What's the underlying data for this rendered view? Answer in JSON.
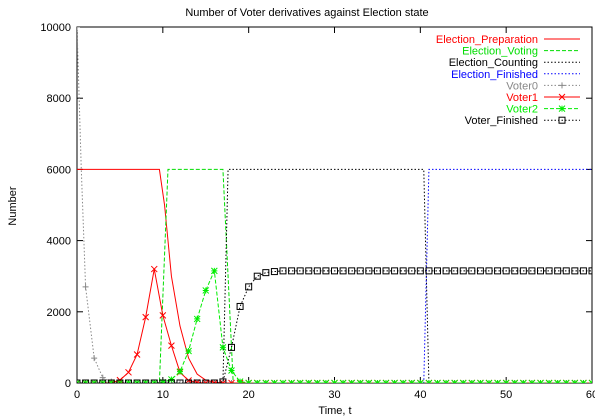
{
  "chart_data": {
    "type": "line",
    "title": "Number of Voter derivatives against Election state",
    "xlabel": "Time, t",
    "ylabel": "Number",
    "xlim": [
      0,
      60
    ],
    "ylim": [
      0,
      10000
    ],
    "x_ticks": [
      "0",
      "10",
      "20",
      "30",
      "40",
      "50",
      "60"
    ],
    "y_ticks": [
      "0",
      "2000",
      "4000",
      "6000",
      "8000",
      "10000"
    ],
    "grid": false,
    "legend_position": "top-right",
    "series": [
      {
        "name": "Election_Preparation",
        "color": "#ff0000",
        "dash": "solid",
        "marker": "none",
        "x": [
          0,
          9.6,
          10.2,
          11,
          12,
          13,
          14,
          15,
          16,
          17,
          18,
          60
        ],
        "y": [
          6000,
          6000,
          5000,
          3000,
          1600,
          700,
          250,
          80,
          20,
          0,
          0,
          0
        ]
      },
      {
        "name": "Election_Voting",
        "color": "#00dd00",
        "dash": "dashed",
        "marker": "none",
        "x": [
          0,
          9.6,
          10.6,
          17.0,
          17.6,
          18.2,
          60
        ],
        "y": [
          0,
          0,
          6000,
          6000,
          3000,
          0,
          0
        ]
      },
      {
        "name": "Election_Counting",
        "color": "#000000",
        "dash": "dotted",
        "marker": "none",
        "x": [
          0,
          17.0,
          17.6,
          40.4,
          41.0,
          60
        ],
        "y": [
          0,
          0,
          6000,
          6000,
          0,
          0
        ]
      },
      {
        "name": "Election_Finished",
        "color": "#0000ff",
        "dash": "dotted",
        "marker": "none",
        "x": [
          0,
          40.4,
          41.0,
          60
        ],
        "y": [
          0,
          0,
          6000,
          6000
        ]
      },
      {
        "name": "Voter0",
        "color": "#888888",
        "dash": "dotted",
        "marker": "plus",
        "x": [
          0,
          0.5,
          1,
          2,
          3,
          4,
          5,
          6,
          7,
          8,
          9,
          10,
          11,
          12,
          13,
          14,
          15,
          16,
          17,
          18,
          19,
          20,
          21,
          22,
          23,
          24,
          25,
          26,
          27,
          28,
          29,
          30,
          31,
          32,
          33,
          34,
          35,
          36,
          37,
          38,
          39,
          40,
          41,
          42,
          43,
          44,
          45,
          46,
          47,
          48,
          49,
          50,
          51,
          52,
          53,
          54,
          55,
          56,
          57,
          58,
          59,
          60
        ],
        "y": [
          10000,
          6000,
          2700,
          700,
          150,
          40,
          10,
          0,
          0,
          0,
          0,
          0,
          0,
          0,
          0,
          0,
          0,
          0,
          0,
          0,
          0,
          0,
          0,
          0,
          0,
          0,
          0,
          0,
          0,
          0,
          0,
          0,
          0,
          0,
          0,
          0,
          0,
          0,
          0,
          0,
          0,
          0,
          0,
          0,
          0,
          0,
          0,
          0,
          0,
          0,
          0,
          0,
          0,
          0,
          0,
          0,
          0,
          0,
          0,
          0,
          0,
          0
        ]
      },
      {
        "name": "Voter1",
        "color": "#ff0000",
        "dash": "solid",
        "marker": "x",
        "x": [
          0,
          1,
          2,
          3,
          4,
          5,
          6,
          7,
          8,
          9,
          10,
          11,
          12,
          13,
          14,
          15,
          16,
          17,
          18,
          19,
          20,
          21,
          22,
          23,
          24,
          25,
          26,
          27,
          28,
          29,
          30,
          31,
          32,
          33,
          34,
          35,
          36,
          37,
          38,
          39,
          40,
          41,
          42,
          43,
          44,
          45,
          46,
          47,
          48,
          49,
          50,
          51,
          52,
          53,
          54,
          55,
          56,
          57,
          58,
          59,
          60
        ],
        "y": [
          0,
          0,
          0,
          0,
          10,
          80,
          300,
          800,
          1850,
          3200,
          1900,
          1050,
          300,
          70,
          15,
          0,
          0,
          0,
          0,
          0,
          0,
          0,
          0,
          0,
          0,
          0,
          0,
          0,
          0,
          0,
          0,
          0,
          0,
          0,
          0,
          0,
          0,
          0,
          0,
          0,
          0,
          0,
          0,
          0,
          0,
          0,
          0,
          0,
          0,
          0,
          0,
          0,
          0,
          0,
          0,
          0,
          0,
          0,
          0,
          0,
          0
        ]
      },
      {
        "name": "Voter2",
        "color": "#00ee00",
        "dash": "dashed",
        "marker": "star",
        "x": [
          0,
          1,
          2,
          3,
          4,
          5,
          6,
          7,
          8,
          9,
          10,
          11,
          12,
          13,
          14,
          15,
          16,
          17,
          18,
          19,
          20,
          21,
          22,
          23,
          24,
          25,
          26,
          27,
          28,
          29,
          30,
          31,
          32,
          33,
          34,
          35,
          36,
          37,
          38,
          39,
          40,
          41,
          42,
          43,
          44,
          45,
          46,
          47,
          48,
          49,
          50,
          51,
          52,
          53,
          54,
          55,
          56,
          57,
          58,
          59,
          60
        ],
        "y": [
          0,
          0,
          0,
          0,
          0,
          0,
          0,
          0,
          0,
          0,
          20,
          100,
          320,
          900,
          1800,
          2600,
          3150,
          1000,
          350,
          40,
          0,
          0,
          0,
          0,
          0,
          0,
          0,
          0,
          0,
          0,
          0,
          0,
          0,
          0,
          0,
          0,
          0,
          0,
          0,
          0,
          0,
          0,
          0,
          0,
          0,
          0,
          0,
          0,
          0,
          0,
          0,
          0,
          0,
          0,
          0,
          0,
          0,
          0,
          0,
          0,
          0
        ]
      },
      {
        "name": "Voter_Finished",
        "color": "#000000",
        "dash": "dotted",
        "marker": "square",
        "x": [
          0,
          1,
          2,
          3,
          4,
          5,
          6,
          7,
          8,
          9,
          10,
          11,
          12,
          13,
          14,
          15,
          16,
          17,
          18,
          19,
          20,
          21,
          22,
          23,
          24,
          25,
          26,
          27,
          28,
          29,
          30,
          31,
          32,
          33,
          34,
          35,
          36,
          37,
          38,
          39,
          40,
          41,
          42,
          43,
          44,
          45,
          46,
          47,
          48,
          49,
          50,
          51,
          52,
          53,
          54,
          55,
          56,
          57,
          58,
          59,
          60
        ],
        "y": [
          0,
          0,
          0,
          0,
          0,
          0,
          0,
          0,
          0,
          0,
          0,
          0,
          0,
          0,
          0,
          0,
          0,
          30,
          1000,
          2150,
          2700,
          3000,
          3100,
          3130,
          3150,
          3150,
          3150,
          3150,
          3150,
          3150,
          3150,
          3150,
          3150,
          3150,
          3150,
          3150,
          3150,
          3150,
          3150,
          3150,
          3150,
          3150,
          3150,
          3150,
          3150,
          3150,
          3150,
          3150,
          3150,
          3150,
          3150,
          3150,
          3150,
          3150,
          3150,
          3150,
          3150,
          3150,
          3150,
          3150,
          3150
        ]
      }
    ]
  }
}
